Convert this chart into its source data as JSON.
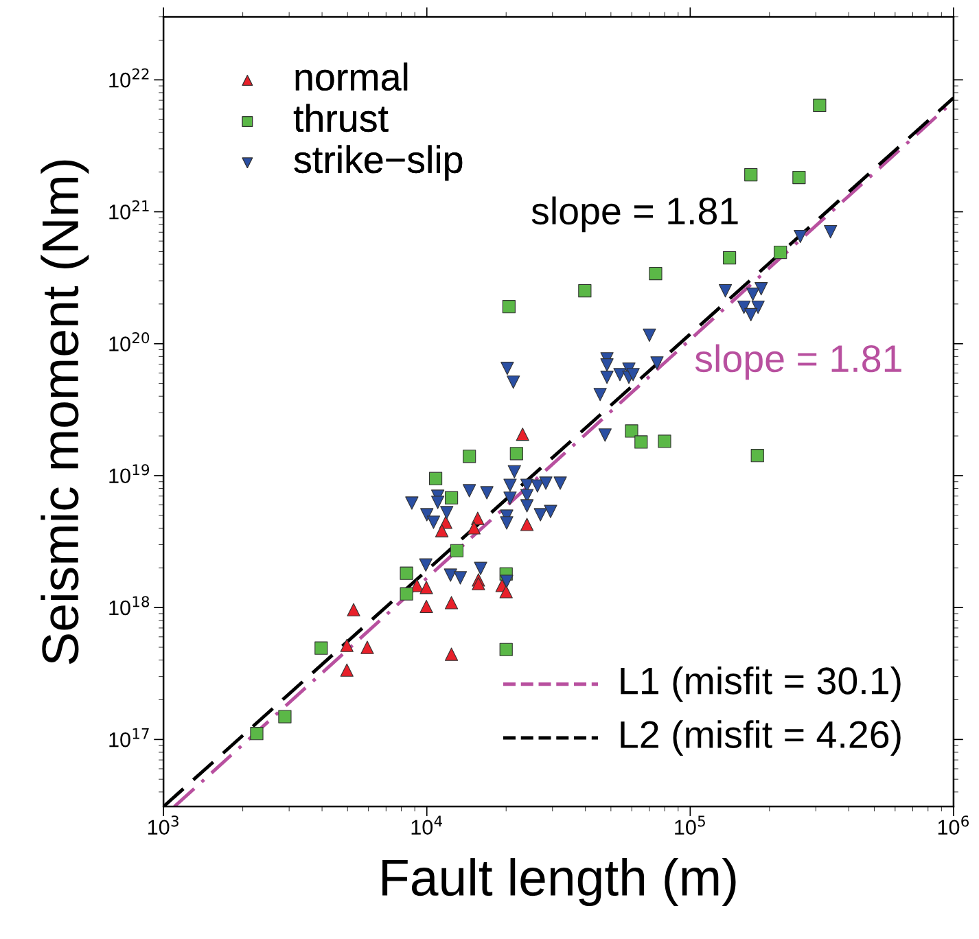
{
  "chart_data": {
    "type": "scatter",
    "xlabel": "Fault length (m)",
    "ylabel": "Seismic moment (Nm)",
    "log": "xy",
    "xlim": [
      1000,
      1000000
    ],
    "ylim": [
      3.1e+16,
      3e+22
    ],
    "xticks": [
      {
        "value": 1000,
        "label": "10$^{3}$"
      },
      {
        "value": 10000,
        "label": "10$^{4}$"
      },
      {
        "value": 100000,
        "label": "10$^{5}$"
      },
      {
        "value": 1000000,
        "label": "10$^{6}$"
      }
    ],
    "yticks": [
      {
        "value": 1e+17,
        "label": "10$^{17}$"
      },
      {
        "value": 1e+18,
        "label": "10$^{18}$"
      },
      {
        "value": 1e+19,
        "label": "10$^{19}$"
      },
      {
        "value": 1e+20,
        "label": "10$^{20}$"
      },
      {
        "value": 1e+21,
        "label": "10$^{21}$"
      },
      {
        "value": 1e+22,
        "label": "10$^{22}$"
      }
    ],
    "grid": false,
    "legend": "top left",
    "series": [
      {
        "name": "normal",
        "color": "#e8202a",
        "marker": "triangle",
        "x": [
          4970,
          5940,
          4970,
          5270,
          9170,
          9960,
          9960,
          12400,
          12400,
          11800,
          11400,
          15600,
          15100,
          15700,
          15700,
          19300,
          20000,
          24000,
          23100
        ],
        "values": [
          5.17e+17,
          4.99e+17,
          3.36e+17,
          9.64e+17,
          1.47e+18,
          1.42e+18,
          1.02e+18,
          1.09e+18,
          4.43e+17,
          4.43e+18,
          3.83e+18,
          4.75e+18,
          4.02e+18,
          1.62e+18,
          1.52e+18,
          1.47e+18,
          1.32e+18,
          4.27e+18,
          2.06e+19
        ]
      },
      {
        "name": "thrust",
        "color": "#5bb847",
        "marker": "square",
        "x": [
          2260,
          2890,
          3970,
          8370,
          8370,
          10800,
          12400,
          13000,
          14500,
          20500,
          21900,
          20000,
          20000,
          39800,
          73900,
          59900,
          65100,
          79900,
          141000,
          220000,
          180000,
          170000,
          259000,
          310000
        ],
        "values": [
          1.11e+17,
          1.49e+17,
          4.93e+17,
          1.82e+18,
          1.27e+18,
          9.5e+18,
          6.8e+18,
          2.7e+18,
          1.4e+19,
          1.91e+20,
          1.47e+19,
          1.8e+18,
          4.81e+17,
          2.52e+20,
          3.4e+20,
          2.18e+19,
          1.8e+19,
          1.82e+19,
          4.48e+20,
          4.93e+20,
          1.42e+19,
          1.91e+21,
          1.82e+21,
          6.41e+21
        ]
      },
      {
        "name": "strike−slip",
        "color": "#2a4fa3",
        "marker": "triangle_down",
        "x": [
          8770,
          10000,
          10600,
          11000,
          11000,
          11900,
          14500,
          16900,
          21500,
          20700,
          20700,
          24000,
          24000,
          24000,
          26300,
          28300,
          32100,
          20100,
          20100,
          27000,
          29500,
          9910,
          12300,
          13400,
          16000,
          20100,
          20200,
          21300,
          70000,
          48300,
          48300,
          48300,
          54100,
          58500,
          58500,
          60700,
          74800,
          45500,
          47500,
          136000,
          186000,
          173000,
          160000,
          181000,
          170000,
          262000,
          341000
        ],
        "values": [
          6.19e+18,
          5.05e+18,
          4.43e+18,
          6.98e+18,
          6.27e+18,
          5.24e+18,
          7.68e+18,
          7.41e+18,
          1.07e+19,
          8.45e+18,
          6.74e+18,
          8.45e+18,
          7.06e+18,
          5.9e+18,
          8.35e+18,
          8.77e+18,
          8.77e+18,
          4.93e+18,
          4.38e+18,
          5.05e+18,
          5.35e+18,
          2.1e+18,
          1.76e+18,
          1.68e+18,
          1.98e+18,
          1.58e+18,
          6.5e+19,
          5.11e+19,
          1.16e+20,
          7.68e+19,
          6.9e+19,
          5.56e+19,
          5.83e+19,
          6.41e+19,
          5.56e+19,
          5.83e+19,
          7.14e+19,
          4.12e+19,
          2.03e+19,
          2.52e+20,
          2.61e+20,
          2.37e+20,
          1.89e+20,
          1.89e+20,
          1.66e+20,
          6.5e+20,
          7.06e+20
        ]
      },
      {
        "name": "L1 (misfit = 30.1)",
        "type": "line",
        "color": "#b8509f",
        "line_style": "dashdot",
        "x": [
          1100,
          1000000
        ],
        "values": [
          3.1e+16,
          6.9e+21
        ]
      },
      {
        "name": "L2 (misfit = 4.26)",
        "type": "line",
        "color": "#000000",
        "line_style": "dashed",
        "x": [
          1000,
          1000000
        ],
        "values": [
          3.1e+16,
          7.3e+21
        ]
      }
    ],
    "annotations": [
      "slope = 1.81",
      "slope = 1.81"
    ]
  }
}
